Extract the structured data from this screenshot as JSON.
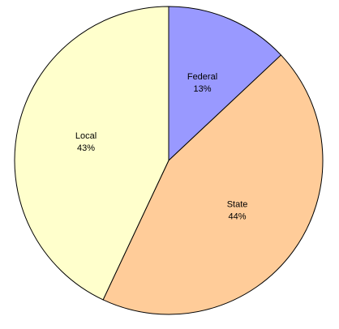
{
  "chart_data": {
    "type": "pie",
    "categories": [
      "Federal",
      "State",
      "Local"
    ],
    "values": [
      13,
      44,
      43
    ],
    "value_labels": [
      "13%",
      "44%",
      "43%"
    ],
    "colors": [
      "#9999ff",
      "#ffcc99",
      "#ffffcc"
    ]
  }
}
